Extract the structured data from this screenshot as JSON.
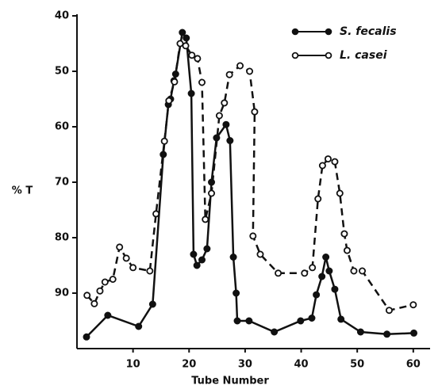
{
  "chart_data": {
    "type": "line",
    "x_label": "Tube Number",
    "y_label": "% T",
    "xlim": [
      0,
      63
    ],
    "ylim": [
      100,
      40
    ],
    "xticks": [
      10,
      20,
      30,
      40,
      50,
      60
    ],
    "yticks": [
      40,
      50,
      60,
      70,
      80,
      90
    ],
    "grid": false,
    "legend": "upper right",
    "series": [
      {
        "name": "S. fecalis",
        "color": "#111111",
        "style": "solid",
        "marker": "filled",
        "x": [
          1.7,
          5.5,
          11,
          13.5,
          15.4,
          16.3,
          16.7,
          17.3,
          17.6,
          18.8,
          19.5,
          20.4,
          20.8,
          21.4,
          22.3,
          23.2,
          24,
          24.9,
          26.6,
          27.3,
          27.9,
          28.4,
          28.6,
          30.7,
          35.2,
          39.9,
          41.9,
          42.7,
          43.7,
          44.4,
          45,
          46,
          47.1,
          50.6,
          55.3,
          60.1
        ],
        "values": [
          97.9,
          94,
          96,
          92,
          65,
          56,
          55,
          51.7,
          50.5,
          43,
          44,
          54,
          83,
          85,
          84,
          82,
          70,
          62,
          59.6,
          62.5,
          83.5,
          90,
          95,
          95,
          97,
          95,
          94.5,
          90.3,
          87,
          83.5,
          86,
          89.3,
          94.7,
          97,
          97.4,
          97.2
        ]
      },
      {
        "name": "L. casei",
        "color": "#111111",
        "style": "dashed",
        "marker": "open",
        "x": [
          1.8,
          3.1,
          4.1,
          5,
          6.4,
          7.6,
          8.8,
          10,
          13,
          14.1,
          15.6,
          16.4,
          17.4,
          18.4,
          19.4,
          20.5,
          21.5,
          22.3,
          22.9,
          24,
          25.4,
          26.3,
          27.2,
          29.1,
          30.8,
          31.7,
          31.4,
          32.7,
          35.9,
          40.6,
          42,
          43,
          43.8,
          44.8,
          46,
          46.9,
          47.7,
          48.2,
          49.4,
          50.9,
          55.7,
          60
        ],
        "values": [
          90.4,
          91.9,
          89.6,
          88,
          87.5,
          81.7,
          83.7,
          85.4,
          86,
          75.7,
          62.6,
          55.3,
          51.9,
          45,
          45.4,
          47.1,
          47.7,
          52,
          76.7,
          72,
          58,
          55.7,
          50.6,
          49,
          50,
          57.3,
          79.7,
          83,
          86.4,
          86.4,
          85.4,
          73,
          67,
          65.8,
          66.3,
          72,
          79.3,
          82.3,
          86,
          86,
          93.1,
          92.1
        ]
      }
    ]
  }
}
